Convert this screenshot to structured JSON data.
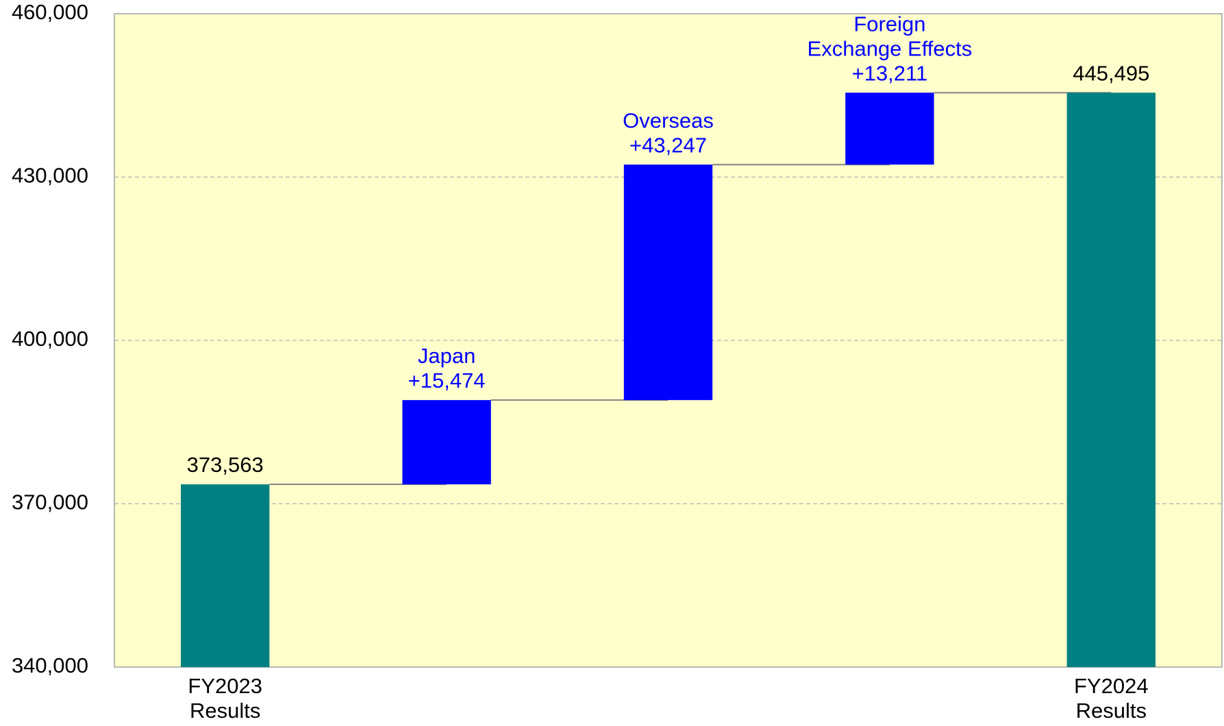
{
  "chart_data": {
    "type": "waterfall",
    "categories": [
      "FY2023\nResults",
      "Japan",
      "Overseas",
      "Foreign\nExchange Effects",
      "FY2024\nResults"
    ],
    "measures": [
      "total",
      "relative",
      "relative",
      "relative",
      "total"
    ],
    "values": [
      373563,
      15474,
      43247,
      13211,
      445495
    ],
    "value_labels": [
      "373,563",
      "+15,474",
      "+43,247",
      "+13,211",
      "445,495"
    ],
    "colors": {
      "total": "#008080",
      "relative": "#0000ff"
    },
    "label_colors": {
      "total": "#000000",
      "relative": "#0000ff"
    },
    "plot_background": "#ffffcc",
    "ylim": [
      340000,
      460000
    ],
    "yticks": [
      {
        "value": 340000,
        "label": "340,000"
      },
      {
        "value": 370000,
        "label": "370,000"
      },
      {
        "value": 400000,
        "label": "400,000"
      },
      {
        "value": 430000,
        "label": "430,000"
      },
      {
        "value": 460000,
        "label": "460,000"
      }
    ],
    "grid": true
  }
}
